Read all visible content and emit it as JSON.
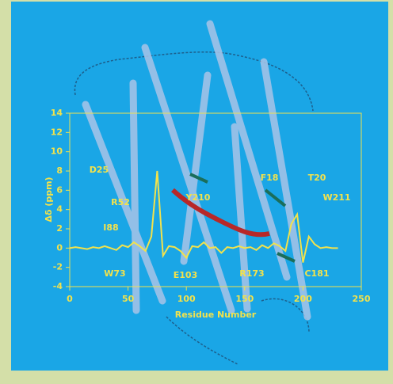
{
  "chart_data": {
    "type": "line",
    "x_label": "Residue Number",
    "y_label": "Δδ (ppm)",
    "xlim": [
      0,
      250
    ],
    "xticks": [
      0,
      50,
      100,
      150,
      200,
      250
    ],
    "ylim": [
      -4,
      14
    ],
    "yticks": [
      -4,
      -2,
      0,
      2,
      4,
      6,
      8,
      10,
      12,
      14
    ],
    "series": [
      {
        "color": "#f2e24c",
        "x": [
          0,
          5,
          10,
          15,
          20,
          25,
          30,
          35,
          40,
          45,
          50,
          55,
          60,
          65,
          70,
          75,
          80,
          85,
          90,
          95,
          100,
          105,
          110,
          115,
          120,
          125,
          130,
          135,
          140,
          145,
          150,
          155,
          160,
          165,
          170,
          175,
          180,
          185,
          190,
          195,
          200,
          205,
          210,
          215,
          220,
          225,
          230
        ],
        "values": [
          0,
          0.1,
          0,
          -0.1,
          0.1,
          0,
          0.2,
          0,
          -0.2,
          0.3,
          0.1,
          0.6,
          0.2,
          -0.3,
          1.2,
          8,
          -0.8,
          0.2,
          0.1,
          -0.3,
          -1,
          0.2,
          0.1,
          0.6,
          0,
          0.1,
          -0.5,
          0.1,
          0,
          0.2,
          0,
          0.1,
          -0.2,
          0.3,
          0,
          0.5,
          0.2,
          -0.3,
          2.5,
          3.5,
          -1.5,
          1.2,
          0.4,
          0,
          0.1,
          0,
          0
        ]
      }
    ],
    "annotations": [
      "D25",
      "R52",
      "I88",
      "W73",
      "E103",
      "R173",
      "C181",
      "T20",
      "W211",
      "F18",
      "Y210"
    ]
  }
}
